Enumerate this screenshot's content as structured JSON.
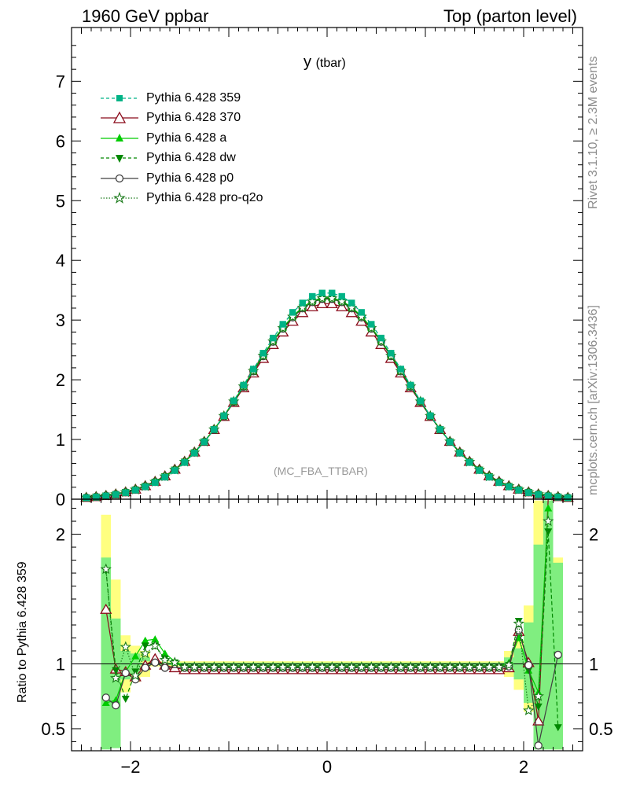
{
  "header": {
    "left": "1960 GeV ppbar",
    "right": "Top (parton level)"
  },
  "side_labels": {
    "rivet": "Rivet 3.1.10, ≥ 2.3M events",
    "mcplots": "mcplots.cern.ch [arXiv:1306.3436]"
  },
  "plot_title": {
    "main": "y",
    "sub": "(tbar)"
  },
  "analysis_tag": "(MC_FBA_TTBAR)",
  "ratio_ylabel": "Ratio to Pythia 6.428 359",
  "colors": {
    "359": "#00b386",
    "370": "#8b0a1a",
    "a": "#00cc00",
    "dw": "#008800",
    "p0": "#404040",
    "pro-q2o": "#1a7a1a",
    "band_yellow": "#ffff80",
    "band_green": "#80ee80"
  },
  "chart_data": [
    {
      "type": "line",
      "panel": "main",
      "xlim": [
        -2.6,
        2.6
      ],
      "ylim": [
        0,
        7.9
      ],
      "x_ticks": [
        "-2",
        "0",
        "2"
      ],
      "y_ticks": [
        "0",
        "1",
        "2",
        "3",
        "4",
        "5",
        "6",
        "7"
      ],
      "series": [
        {
          "name": "Pythia 6.428 359",
          "style": "dashed-square",
          "color": "#00b386",
          "peak": 3.46,
          "sigma": 0.78
        },
        {
          "name": "Pythia 6.428 370",
          "style": "solid-triangle-open",
          "color": "#8b0a1a",
          "peak": 3.28,
          "sigma": 0.8
        },
        {
          "name": "Pythia 6.428 a",
          "style": "solid-triangle",
          "color": "#00cc00",
          "peak": 3.38,
          "sigma": 0.79
        },
        {
          "name": "Pythia 6.428 dw",
          "style": "dashed-triangle-down",
          "color": "#008800",
          "peak": 3.37,
          "sigma": 0.79
        },
        {
          "name": "Pythia 6.428 p0",
          "style": "solid-circle-open",
          "color": "#404040",
          "peak": 3.36,
          "sigma": 0.79
        },
        {
          "name": "Pythia 6.428 pro-q2o",
          "style": "dotted-star",
          "color": "#1a7a1a",
          "peak": 3.37,
          "sigma": 0.79
        }
      ]
    },
    {
      "type": "line",
      "panel": "ratio",
      "xlim": [
        -2.6,
        2.6
      ],
      "ylim": [
        0.33,
        2.27
      ],
      "y_ticks": [
        "0.5",
        "1",
        "2"
      ],
      "reference_line": 1.0,
      "series": [
        {
          "name": "Pythia 6.428 370",
          "x": [
            -2.25,
            -2.15,
            -2.05,
            -1.95,
            -1.85,
            -1.75,
            -1.65,
            -1.55,
            1.85,
            1.95,
            2.05,
            2.15,
            2.25
          ],
          "y": [
            1.42,
            0.96,
            0.94,
            0.9,
            0.99,
            1.04,
            0.99,
            0.97,
            0.97,
            1.25,
            1.01,
            0.56,
            2.3
          ]
        },
        {
          "name": "Pythia 6.428 a",
          "x": [
            -2.25,
            -2.15,
            -2.05,
            -1.95,
            -1.85,
            -1.75,
            -1.65,
            -1.55,
            1.85,
            1.95,
            2.05,
            2.15,
            2.25
          ],
          "y": [
            0.7,
            0.72,
            0.94,
            1.06,
            1.18,
            1.19,
            1.08,
            1.02,
            1.01,
            1.2,
            0.95,
            0.78,
            2.2
          ]
        },
        {
          "name": "Pythia 6.428 dw",
          "x": [
            -2.25,
            -2.15,
            -2.05,
            -1.95,
            -1.85,
            -1.75,
            -1.65,
            -1.55,
            1.85,
            1.95,
            2.05,
            2.15,
            2.25,
            2.35
          ],
          "y": [
            1.72,
            0.95,
            0.73,
            0.94,
            1.14,
            1.14,
            1.04,
            1.01,
            0.99,
            1.33,
            0.95,
            0.67,
            2.02,
            0.51
          ]
        },
        {
          "name": "Pythia 6.428 p0",
          "x": [
            -2.25,
            -2.15,
            -2.05,
            -1.95,
            -1.85,
            -1.75,
            -1.65,
            1.85,
            1.95,
            2.05,
            2.15,
            2.35
          ],
          "y": [
            0.74,
            0.68,
            0.93,
            0.88,
            0.97,
            1.01,
            0.97,
            0.98,
            1.26,
            0.99,
            0.37,
            1.07
          ]
        },
        {
          "name": "Pythia 6.428 pro-q2o",
          "x": [
            -2.25,
            -2.15,
            -2.05,
            -1.95,
            -1.85,
            -1.75,
            -1.65,
            -1.55,
            1.85,
            1.95,
            2.05,
            2.15,
            2.25
          ],
          "y": [
            1.73,
            0.89,
            1.13,
            0.91,
            1.08,
            1.14,
            1.03,
            1.01,
            0.99,
            1.31,
            0.64,
            0.75,
            2.1
          ]
        }
      ],
      "central_ratios": {
        "370": 0.955,
        "a": 0.98,
        "dw": 0.975,
        "p0": 0.97,
        "pro-q2o": 0.975
      }
    }
  ]
}
